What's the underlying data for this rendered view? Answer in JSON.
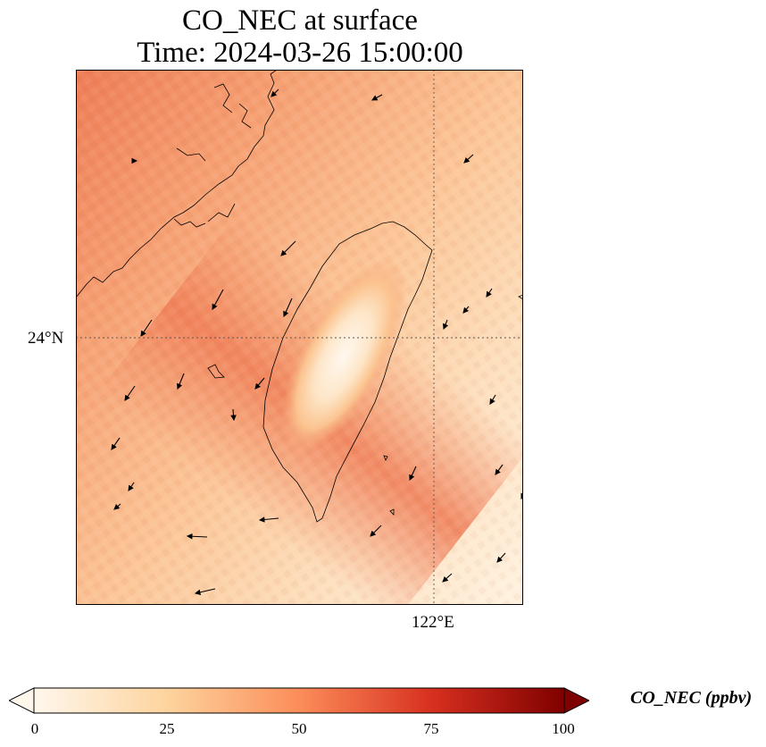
{
  "title": {
    "line1": "CO_NEC at surface",
    "line2": "Time: 2024-03-26 15:00:00"
  },
  "map": {
    "lat_tick_label": "24°N",
    "lon_tick_label": "122°E",
    "gridlines": "dotted",
    "coastlines": true,
    "wind_vectors": true
  },
  "colorbar": {
    "title": "CO_NEC (ppbv)",
    "colormap": "OrRd",
    "ticks": [
      "0",
      "25",
      "50",
      "75",
      "100"
    ],
    "range": [
      0,
      100
    ],
    "extend": "both",
    "colors": [
      "#fff7ec",
      "#fdd49e",
      "#fc8d59",
      "#d7301f",
      "#7f0000"
    ]
  }
}
